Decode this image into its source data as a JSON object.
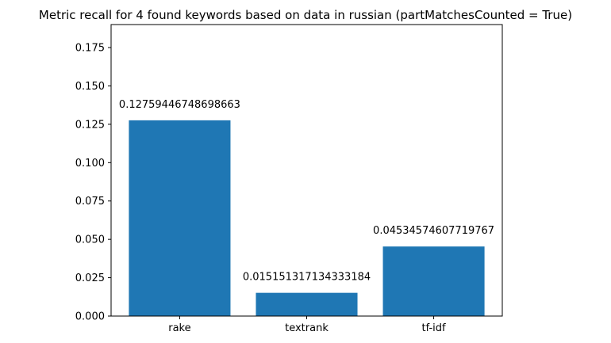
{
  "chart_data": {
    "type": "bar",
    "title": "Metric recall for 4 found keywords based on data in russian (partMatchesCounted = True)",
    "categories": [
      "rake",
      "textrank",
      "tf-idf"
    ],
    "values": [
      0.12759446748698663,
      0.015151317134333184,
      0.04534574607719767
    ],
    "value_labels": [
      "0.12759446748698663",
      "0.015151317134333184",
      "0.04534574607719767"
    ],
    "xlabel": "",
    "ylabel": "",
    "ylim": [
      0,
      0.19
    ],
    "yticks": [
      0.0,
      0.025,
      0.05,
      0.075,
      0.1,
      0.125,
      0.15,
      0.175
    ],
    "ytick_labels": [
      "0.000",
      "0.025",
      "0.050",
      "0.075",
      "0.100",
      "0.125",
      "0.150",
      "0.175"
    ],
    "grid": false,
    "bar_color": "#1f77b4"
  }
}
